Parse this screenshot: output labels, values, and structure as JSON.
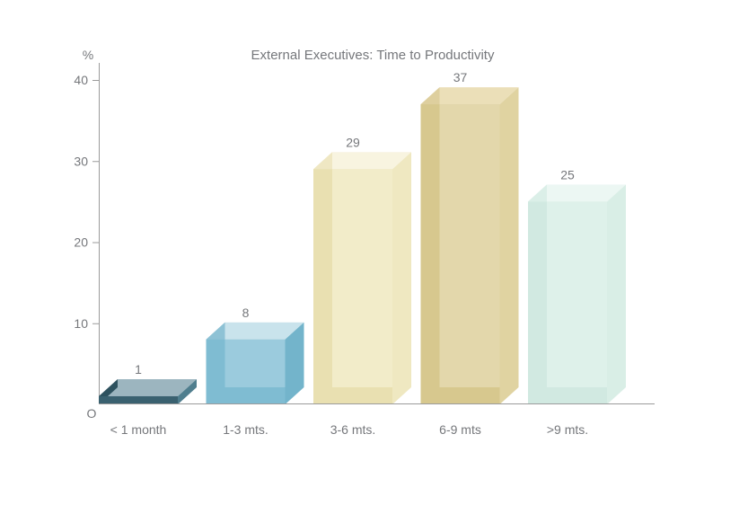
{
  "chart_data": {
    "type": "bar",
    "title": "External Executives: Time to Productivity",
    "y_axis_unit": "%",
    "origin_label": "O",
    "categories": [
      "< 1 month",
      "1-3 mts.",
      "3-6 mts.",
      "6-9 mts",
      ">9 mts."
    ],
    "values": [
      1,
      8,
      29,
      37,
      25
    ],
    "y_ticks": [
      10,
      20,
      30,
      40
    ],
    "ylim": [
      0,
      42
    ],
    "xlabel": "",
    "ylabel": "%",
    "grid": false,
    "legend": false,
    "bar_style": "3d-translucent-box",
    "colors": {
      "background": "#ffffff",
      "text": "#75777b",
      "axis": "#9b9b9b",
      "bars": [
        {
          "name": "dark-slate-teal",
          "top": "#9cb5bf",
          "left": "#2e525f",
          "front": "#3a6170",
          "center": "#3a6170",
          "right": "#4f7e8e"
        },
        {
          "name": "light-blue",
          "top": "#c9e3ec",
          "left": "#8ec2d5",
          "front": "#7fbcd2",
          "center": "#9bcbdd",
          "right": "#73b4cb"
        },
        {
          "name": "cream",
          "top": "#f8f4e0",
          "left": "#efe7c3",
          "front": "#e9e0b1",
          "center": "#f2ecc9",
          "right": "#efe8c1"
        },
        {
          "name": "tan",
          "top": "#ebdfb8",
          "left": "#decf9e",
          "front": "#d7c88e",
          "center": "#e3d7ab",
          "right": "#e0d3a1"
        },
        {
          "name": "pale-mint",
          "top": "#ecf7f3",
          "left": "#dbefe8",
          "front": "#d1e9e1",
          "center": "#def1ea",
          "right": "#d9eee6"
        }
      ]
    }
  }
}
